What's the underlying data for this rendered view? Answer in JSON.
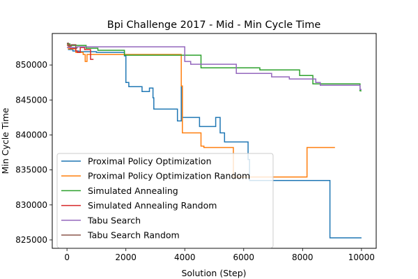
{
  "chart_data": {
    "type": "line",
    "title": "Bpi Challenge 2017 - Mid - Min Cycle Time",
    "xlabel": "Solution (Step)",
    "ylabel": "Min Cycle Time",
    "xlim": [
      -500,
      10500
    ],
    "ylim": [
      823800,
      854500
    ],
    "x_ticks": [
      0,
      2000,
      4000,
      6000,
      8000,
      10000
    ],
    "x_tick_labels": [
      "0",
      "2000",
      "4000",
      "6000",
      "8000",
      "10000"
    ],
    "y_ticks": [
      825000,
      830000,
      835000,
      840000,
      845000,
      850000
    ],
    "y_tick_labels": [
      "825000",
      "830000",
      "835000",
      "840000",
      "845000",
      "850000"
    ],
    "grid": false,
    "legend_position": "lower-left",
    "series": [
      {
        "name": "Proximal Policy Optimization",
        "color": "#1f77b4",
        "step": true,
        "points": [
          [
            0,
            853000
          ],
          [
            50,
            852200
          ],
          [
            200,
            852000
          ],
          [
            400,
            851900
          ],
          [
            800,
            851900
          ],
          [
            1000,
            851800
          ],
          [
            1700,
            851800
          ],
          [
            1950,
            851300
          ],
          [
            2000,
            847500
          ],
          [
            2100,
            846900
          ],
          [
            2500,
            846900
          ],
          [
            2550,
            846200
          ],
          [
            2750,
            846200
          ],
          [
            2800,
            846700
          ],
          [
            2900,
            846700
          ],
          [
            2920,
            845300
          ],
          [
            2950,
            843700
          ],
          [
            3700,
            843700
          ],
          [
            3750,
            842000
          ],
          [
            3850,
            842000
          ],
          [
            3880,
            847000
          ],
          [
            3920,
            842500
          ],
          [
            4450,
            842500
          ],
          [
            4500,
            841200
          ],
          [
            5000,
            841200
          ],
          [
            5050,
            842500
          ],
          [
            5150,
            842500
          ],
          [
            5200,
            840300
          ],
          [
            5300,
            840300
          ],
          [
            5350,
            839000
          ],
          [
            6100,
            839000
          ],
          [
            6150,
            836500
          ],
          [
            6200,
            833500
          ],
          [
            8900,
            833500
          ],
          [
            8930,
            825300
          ],
          [
            10000,
            825300
          ]
        ]
      },
      {
        "name": "Proximal Policy Optimization Random",
        "color": "#ff7f0e",
        "step": true,
        "points": [
          [
            0,
            853000
          ],
          [
            50,
            852300
          ],
          [
            300,
            851800
          ],
          [
            500,
            851800
          ],
          [
            550,
            851500
          ],
          [
            620,
            850500
          ],
          [
            680,
            851500
          ],
          [
            3850,
            851500
          ],
          [
            3880,
            847000
          ],
          [
            3920,
            840300
          ],
          [
            4500,
            840300
          ],
          [
            4550,
            838400
          ],
          [
            4650,
            838200
          ],
          [
            5600,
            838200
          ],
          [
            5650,
            834000
          ],
          [
            8100,
            834000
          ],
          [
            8150,
            838200
          ],
          [
            9100,
            838200
          ]
        ]
      },
      {
        "name": "Simulated Annealing",
        "color": "#2ca02c",
        "step": true,
        "points": [
          [
            0,
            853000
          ],
          [
            100,
            852800
          ],
          [
            600,
            852800
          ],
          [
            650,
            852400
          ],
          [
            1000,
            852400
          ],
          [
            1050,
            852100
          ],
          [
            1900,
            852100
          ],
          [
            1950,
            851400
          ],
          [
            4500,
            851400
          ],
          [
            4550,
            849600
          ],
          [
            6500,
            849600
          ],
          [
            6550,
            849300
          ],
          [
            7850,
            849300
          ],
          [
            7900,
            848500
          ],
          [
            8300,
            848500
          ],
          [
            8350,
            847300
          ],
          [
            9300,
            847300
          ],
          [
            9900,
            847300
          ],
          [
            9950,
            846300
          ],
          [
            10000,
            846300
          ]
        ]
      },
      {
        "name": "Simulated Annealing Random",
        "color": "#d62728",
        "step": true,
        "points": [
          [
            0,
            852800
          ],
          [
            100,
            852400
          ],
          [
            300,
            852000
          ],
          [
            350,
            851800
          ],
          [
            450,
            852500
          ],
          [
            600,
            852200
          ],
          [
            750,
            852200
          ],
          [
            800,
            850800
          ],
          [
            900,
            850800
          ]
        ]
      },
      {
        "name": "Tabu Search",
        "color": "#9467bd",
        "step": true,
        "points": [
          [
            0,
            852500
          ],
          [
            300,
            852500
          ],
          [
            350,
            852600
          ],
          [
            3950,
            852600
          ],
          [
            4000,
            850500
          ],
          [
            4200,
            850100
          ],
          [
            5700,
            850100
          ],
          [
            5750,
            848800
          ],
          [
            6900,
            848800
          ],
          [
            6950,
            848300
          ],
          [
            7500,
            848300
          ],
          [
            7550,
            848000
          ],
          [
            8400,
            848000
          ],
          [
            8450,
            847500
          ],
          [
            8600,
            847100
          ],
          [
            9900,
            847100
          ],
          [
            9950,
            846500
          ],
          [
            10000,
            846500
          ]
        ]
      },
      {
        "name": "Tabu Search Random",
        "color": "#8c564b",
        "step": true,
        "points": [
          [
            0,
            853100
          ],
          [
            50,
            852700
          ],
          [
            150,
            852900
          ],
          [
            300,
            852400
          ],
          [
            350,
            852400
          ]
        ]
      }
    ]
  }
}
